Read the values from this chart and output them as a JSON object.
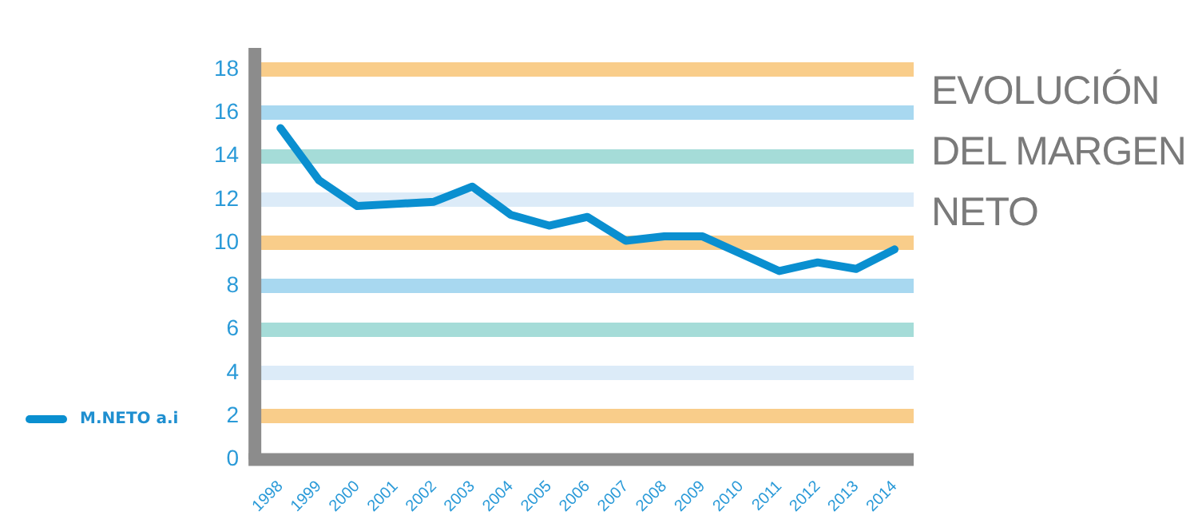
{
  "chart_data": {
    "type": "line",
    "title": "EVOLUCIÓN DEL MARGEN NETO",
    "categories": [
      "1998",
      "1999",
      "2000",
      "2001",
      "2002",
      "2003",
      "2004",
      "2005",
      "2006",
      "2007",
      "2008",
      "2009",
      "2010",
      "2011",
      "2012",
      "2013",
      "2014"
    ],
    "series": [
      {
        "name": "M.NETO a.i",
        "color": "#0a8fd0",
        "values": [
          15.3,
          12.9,
          11.7,
          11.8,
          11.9,
          12.6,
          11.3,
          10.8,
          11.2,
          10.1,
          10.3,
          10.3,
          9.5,
          8.7,
          9.1,
          8.8,
          9.7
        ]
      }
    ],
    "ylim": [
      0,
      19
    ],
    "yticks": [
      0,
      2,
      4,
      6,
      8,
      10,
      12,
      14,
      16,
      18
    ],
    "grid": "y",
    "legend": "bottom left",
    "marker": "none",
    "line_style": "solid"
  }
}
